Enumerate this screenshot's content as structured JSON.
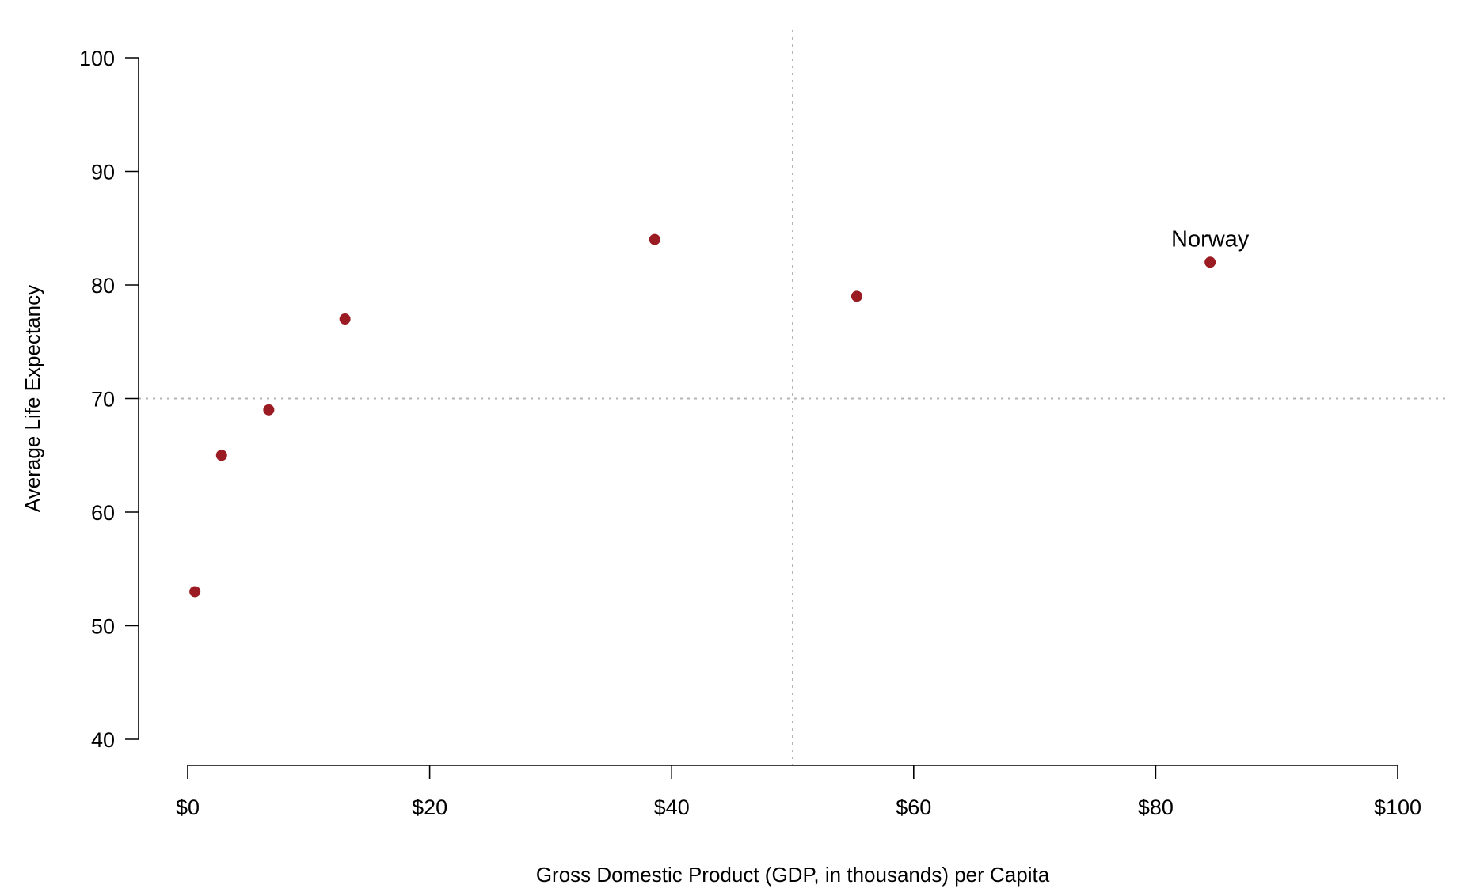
{
  "chart_data": {
    "type": "scatter",
    "title": "",
    "xlabel": "Gross Domestic Product (GDP, in thousands) per Capita",
    "ylabel": "Average Life Expectancy",
    "xlim": [
      0,
      100
    ],
    "ylim": [
      40,
      100
    ],
    "x_ticks": [
      0,
      20,
      40,
      60,
      80,
      100
    ],
    "x_tick_labels": [
      "$0",
      "$20",
      "$40",
      "$60",
      "$80",
      "$100"
    ],
    "y_ticks": [
      40,
      50,
      60,
      70,
      80,
      90,
      100
    ],
    "y_tick_labels": [
      "40",
      "50",
      "60",
      "70",
      "80",
      "90",
      "100"
    ],
    "grid": false,
    "reference_lines": {
      "vertical_x": 50,
      "horizontal_y": 70,
      "color": "#b4b4b4",
      "style": "dotted"
    },
    "point_color": "#9b1b22",
    "points": [
      {
        "x": 0.6,
        "y": 53,
        "label": ""
      },
      {
        "x": 2.8,
        "y": 65,
        "label": ""
      },
      {
        "x": 6.7,
        "y": 69,
        "label": ""
      },
      {
        "x": 13.0,
        "y": 77,
        "label": ""
      },
      {
        "x": 38.6,
        "y": 84,
        "label": ""
      },
      {
        "x": 55.3,
        "y": 79,
        "label": ""
      },
      {
        "x": 84.5,
        "y": 82,
        "label": "Norway"
      }
    ]
  }
}
